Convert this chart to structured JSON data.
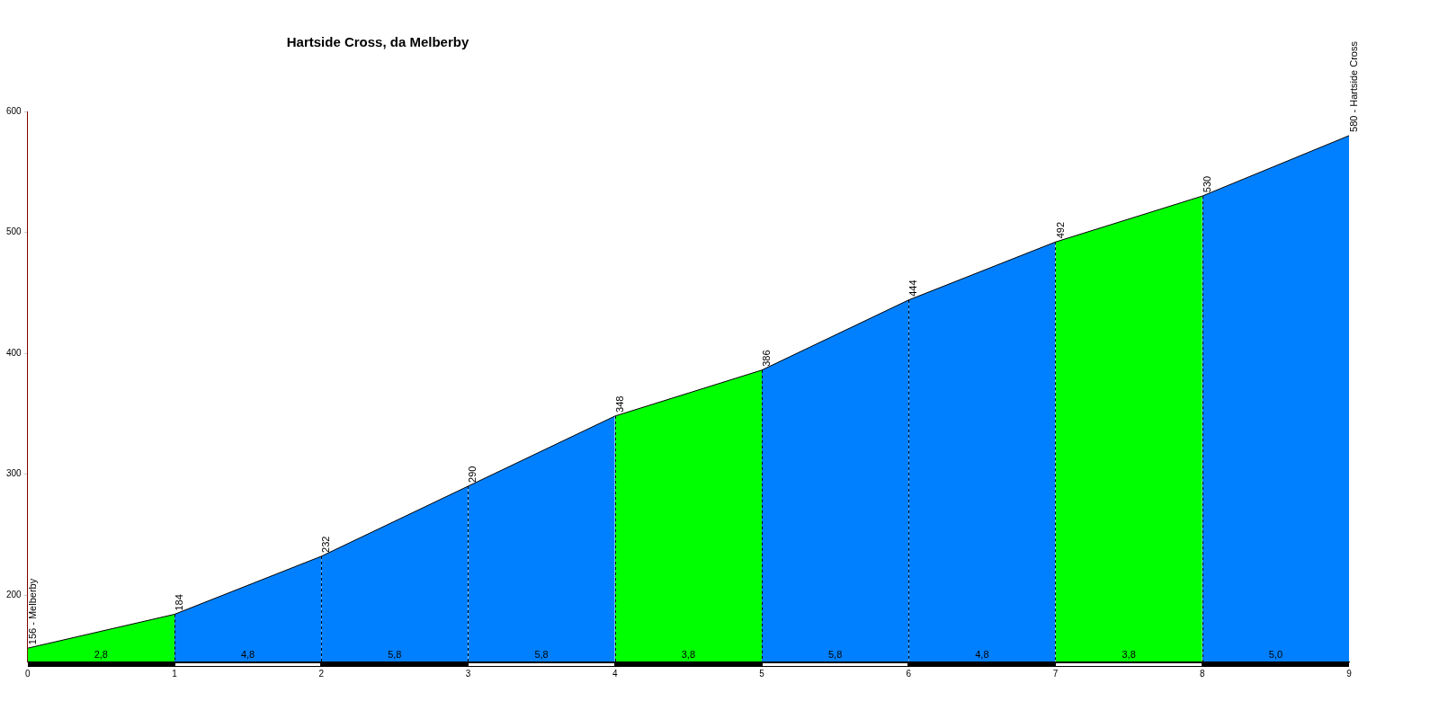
{
  "chart_data": {
    "type": "area",
    "title": "Hartside Cross, da Melberby",
    "series": [
      {
        "color": "#00ff00",
        "x": [
          0,
          1
        ],
        "values": [
          156,
          184
        ],
        "value_labels": [
          "156 - Melberby",
          null
        ]
      },
      {
        "color": "#0080ff",
        "x": [
          1,
          2
        ],
        "values": [
          184,
          232
        ],
        "value_labels": [
          "184",
          null
        ]
      },
      {
        "color": "#0080ff",
        "x": [
          2,
          3
        ],
        "values": [
          232,
          290
        ],
        "value_labels": [
          "232",
          null
        ]
      },
      {
        "color": "#0080ff",
        "x": [
          3,
          4
        ],
        "values": [
          290,
          348
        ],
        "value_labels": [
          "290",
          null
        ]
      },
      {
        "color": "#00ff00",
        "x": [
          4,
          5
        ],
        "values": [
          348,
          386
        ],
        "value_labels": [
          "348",
          null
        ]
      },
      {
        "color": "#0080ff",
        "x": [
          5,
          6
        ],
        "values": [
          386,
          444
        ],
        "value_labels": [
          "386",
          null
        ]
      },
      {
        "color": "#0080ff",
        "x": [
          6,
          7
        ],
        "values": [
          444,
          492
        ],
        "value_labels": [
          "444",
          null
        ]
      },
      {
        "color": "#00ff00",
        "x": [
          7,
          8
        ],
        "values": [
          492,
          530
        ],
        "value_labels": [
          "492",
          null
        ]
      },
      {
        "color": "#0080ff",
        "x": [
          8,
          9
        ],
        "values": [
          530,
          580
        ],
        "value_labels": [
          "530",
          "580 - Hartside Cross"
        ]
      }
    ],
    "annotations": [
      "2,8",
      "4,8",
      "5,8",
      "5,8",
      "3,8",
      "5,8",
      "4,8",
      "3,8",
      "5,0"
    ],
    "xlim": [
      0,
      9
    ],
    "xticks": [
      0,
      1,
      2,
      3,
      4,
      5,
      6,
      7,
      8,
      9
    ],
    "ylim": [
      145,
      600
    ],
    "yticks": [
      200,
      300,
      400,
      500,
      600
    ],
    "grid": "x",
    "legend": false,
    "marker": "none"
  }
}
